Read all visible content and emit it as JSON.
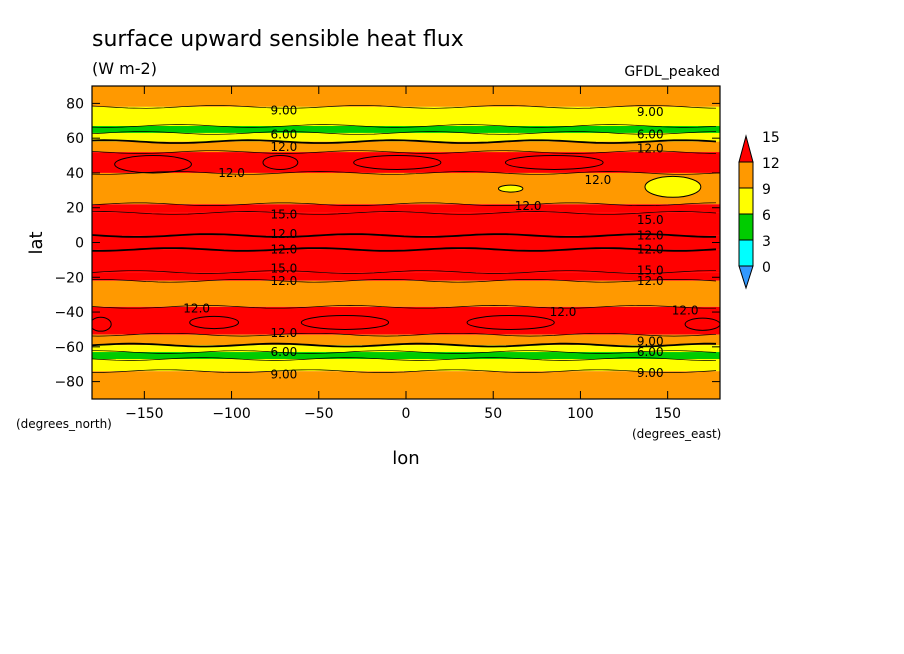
{
  "chart_data": {
    "type": "heatmap",
    "title": "surface upward sensible heat flux",
    "subtitle": "(W m-2)",
    "dataset_label": "GFDL_peaked",
    "xlabel": "lon",
    "ylabel": "lat",
    "x_units_label": "(degrees_east)",
    "y_units_label": "(degrees_north)",
    "xlim": [
      -180,
      180
    ],
    "ylim": [
      -90,
      90
    ],
    "x_ticks": [
      -150,
      -100,
      -50,
      0,
      50,
      100,
      150
    ],
    "x_tick_labels": [
      "-150",
      "-100",
      "-50",
      "0",
      "50",
      "100",
      "150"
    ],
    "y_ticks": [
      80,
      60,
      40,
      20,
      0,
      -20,
      -40,
      -60,
      -80
    ],
    "y_tick_labels": [
      "80",
      "60",
      "40",
      "20",
      "0",
      "-20",
      "-40",
      "-60",
      "-80"
    ],
    "colorbar": {
      "levels": [
        0,
        3,
        6,
        9,
        12,
        15
      ],
      "labels": [
        "15",
        "12",
        "9",
        "6",
        "3",
        "0"
      ],
      "colors": [
        "#3399ff",
        "#00ffff",
        "#00cc00",
        "#ffff00",
        "#ff9900",
        "#ff0000"
      ]
    },
    "lat_bands": [
      {
        "lat_top": 90,
        "lat_bottom": 78,
        "value": 10.5
      },
      {
        "lat_top": 78,
        "lat_bottom": 67,
        "value": 7.5
      },
      {
        "lat_top": 67,
        "lat_bottom": 63,
        "value": 4.5
      },
      {
        "lat_top": 63,
        "lat_bottom": 58,
        "value": 7.5
      },
      {
        "lat_top": 58,
        "lat_bottom": 52,
        "value": 10.5
      },
      {
        "lat_top": 52,
        "lat_bottom": 40,
        "value": 13.5
      },
      {
        "lat_top": 40,
        "lat_bottom": 22,
        "value": 10.5
      },
      {
        "lat_top": 22,
        "lat_bottom": 17,
        "value": 13.5
      },
      {
        "lat_top": 17,
        "lat_bottom": 4,
        "value": 16.5
      },
      {
        "lat_top": 4,
        "lat_bottom": -4,
        "value": 13.5
      },
      {
        "lat_top": -4,
        "lat_bottom": -17,
        "value": 16.5
      },
      {
        "lat_top": -17,
        "lat_bottom": -22,
        "value": 13.5
      },
      {
        "lat_top": -22,
        "lat_bottom": -37,
        "value": 10.5
      },
      {
        "lat_top": -37,
        "lat_bottom": -53,
        "value": 13.5
      },
      {
        "lat_top": -53,
        "lat_bottom": -59,
        "value": 10.5
      },
      {
        "lat_top": -59,
        "lat_bottom": -63,
        "value": 7.5
      },
      {
        "lat_top": -63,
        "lat_bottom": -67,
        "value": 4.5
      },
      {
        "lat_top": -67,
        "lat_bottom": -74,
        "value": 7.5
      },
      {
        "lat_top": -74,
        "lat_bottom": -90,
        "value": 10.5
      }
    ],
    "blobs": [
      {
        "lon": -145,
        "lat": 45,
        "rx": 22,
        "ry": 5,
        "value": 16.5
      },
      {
        "lon": -72,
        "lat": 46,
        "rx": 10,
        "ry": 4,
        "value": 16.5
      },
      {
        "lon": -5,
        "lat": 46,
        "rx": 25,
        "ry": 4,
        "value": 16.5
      },
      {
        "lon": 85,
        "lat": 46,
        "rx": 28,
        "ry": 4,
        "value": 16.5
      },
      {
        "lon": 153,
        "lat": 32,
        "rx": 16,
        "ry": 6,
        "value": 7.5
      },
      {
        "lon": 60,
        "lat": 31,
        "rx": 7,
        "ry": 2,
        "value": 7.5
      },
      {
        "lon": -175,
        "lat": -47,
        "rx": 6,
        "ry": 4,
        "value": 16.5
      },
      {
        "lon": -110,
        "lat": -46,
        "rx": 14,
        "ry": 3.5,
        "value": 16.5
      },
      {
        "lon": -35,
        "lat": -46,
        "rx": 25,
        "ry": 4,
        "value": 16.5
      },
      {
        "lon": 60,
        "lat": -46,
        "rx": 25,
        "ry": 4,
        "value": 16.5
      },
      {
        "lon": 170,
        "lat": -47,
        "rx": 10,
        "ry": 3.5,
        "value": 16.5
      }
    ],
    "contour_labels": [
      {
        "text": "9.00",
        "lon": -70,
        "lat": 76
      },
      {
        "text": "9.00",
        "lon": 140,
        "lat": 75
      },
      {
        "text": "6.00",
        "lon": -70,
        "lat": 62
      },
      {
        "text": "6.00",
        "lon": 140,
        "lat": 62
      },
      {
        "text": "12.0",
        "lon": -70,
        "lat": 55
      },
      {
        "text": "12.0",
        "lon": 140,
        "lat": 54
      },
      {
        "text": "12.0",
        "lon": -100,
        "lat": 40
      },
      {
        "text": "12.0",
        "lon": 110,
        "lat": 36
      },
      {
        "text": "12.0",
        "lon": 70,
        "lat": 21
      },
      {
        "text": "15.0",
        "lon": -70,
        "lat": 16
      },
      {
        "text": "15.0",
        "lon": 140,
        "lat": 13
      },
      {
        "text": "12.0",
        "lon": -70,
        "lat": 5
      },
      {
        "text": "12.0",
        "lon": 140,
        "lat": 4
      },
      {
        "text": "12.0",
        "lon": -70,
        "lat": -4
      },
      {
        "text": "12.0",
        "lon": 140,
        "lat": -4
      },
      {
        "text": "15.0",
        "lon": -70,
        "lat": -15
      },
      {
        "text": "15.0",
        "lon": 140,
        "lat": -16
      },
      {
        "text": "12.0",
        "lon": -70,
        "lat": -22
      },
      {
        "text": "12.0",
        "lon": 140,
        "lat": -22
      },
      {
        "text": "12.0",
        "lon": -120,
        "lat": -38
      },
      {
        "text": "12.0",
        "lon": 90,
        "lat": -40
      },
      {
        "text": "12.0",
        "lon": 160,
        "lat": -39
      },
      {
        "text": "12.0",
        "lon": -70,
        "lat": -52
      },
      {
        "text": "9.00",
        "lon": 140,
        "lat": -57
      },
      {
        "text": "6.00",
        "lon": -70,
        "lat": -63
      },
      {
        "text": "6.00",
        "lon": 140,
        "lat": -63
      },
      {
        "text": "9.00",
        "lon": -70,
        "lat": -76
      },
      {
        "text": "9.00",
        "lon": 140,
        "lat": -75
      }
    ]
  }
}
